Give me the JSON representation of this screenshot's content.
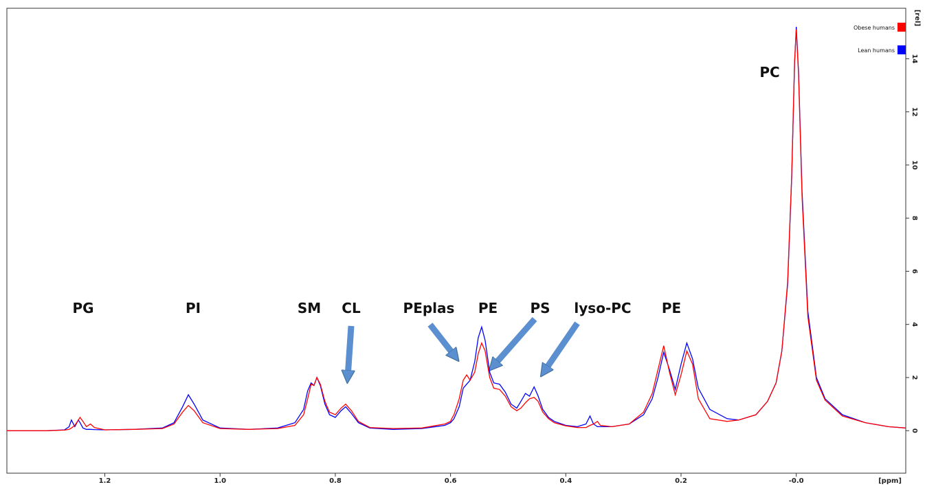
{
  "chart_data": {
    "type": "line",
    "xlabel": "[ppm]",
    "ylabel": "[rel]",
    "xlim": [
      1.37,
      -0.19
    ],
    "ylim": [
      -1.6,
      15.9
    ],
    "xticks": [
      1.2,
      {
        "value": 1,
        "label": "1.0"
      },
      0.8,
      0.6,
      0.4,
      0.2,
      {
        "value": 0,
        "label": "-0.0"
      }
    ],
    "yticks": [
      0,
      2,
      4,
      6,
      8,
      10,
      12,
      14
    ],
    "legend": "top-right",
    "annotations": [
      "PG",
      "PI",
      "SM",
      "CL",
      "PEplas",
      "PE",
      "PS",
      "lyso-PC",
      "PE",
      "PC"
    ],
    "x": [
      1.37,
      1.3,
      1.27,
      1.262,
      1.258,
      1.252,
      1.246,
      1.243,
      1.238,
      1.232,
      1.225,
      1.218,
      1.2,
      1.15,
      1.1,
      1.08,
      1.065,
      1.055,
      1.045,
      1.03,
      1.0,
      0.95,
      0.9,
      0.87,
      0.855,
      0.848,
      0.842,
      0.837,
      0.832,
      0.826,
      0.818,
      0.81,
      0.8,
      0.79,
      0.782,
      0.772,
      0.76,
      0.74,
      0.7,
      0.65,
      0.61,
      0.6,
      0.598,
      0.594,
      0.585,
      0.578,
      0.572,
      0.566,
      0.558,
      0.552,
      0.546,
      0.54,
      0.532,
      0.525,
      0.515,
      0.505,
      0.495,
      0.485,
      0.478,
      0.47,
      0.463,
      0.455,
      0.448,
      0.44,
      0.43,
      0.42,
      0.4,
      0.38,
      0.365,
      0.358,
      0.352,
      0.345,
      0.34,
      0.32,
      0.29,
      0.265,
      0.25,
      0.24,
      0.23,
      0.22,
      0.21,
      0.2,
      0.19,
      0.18,
      0.17,
      0.15,
      0.12,
      0.1,
      0.07,
      0.05,
      0.035,
      0.025,
      0.015,
      0.008,
      0.003,
      0,
      -0.004,
      -0.01,
      -0.02,
      -0.035,
      -0.05,
      -0.08,
      -0.12,
      -0.16,
      -0.19
    ],
    "series": [
      {
        "name": "Obese humans",
        "color": "#ff0000",
        "values": [
          0,
          0,
          0.02,
          0.05,
          0.1,
          0.2,
          0.4,
          0.5,
          0.35,
          0.15,
          0.25,
          0.12,
          0.03,
          0.05,
          0.08,
          0.25,
          0.7,
          0.95,
          0.75,
          0.3,
          0.08,
          0.05,
          0.08,
          0.2,
          0.6,
          1.2,
          1.75,
          1.7,
          2.0,
          1.75,
          1.1,
          0.7,
          0.6,
          0.85,
          1.0,
          0.75,
          0.35,
          0.12,
          0.08,
          0.1,
          0.25,
          0.35,
          0.45,
          0.6,
          1.2,
          1.9,
          2.1,
          1.9,
          2.2,
          2.9,
          3.3,
          3.0,
          2.0,
          1.6,
          1.55,
          1.3,
          0.9,
          0.75,
          0.85,
          1.05,
          1.2,
          1.25,
          1.1,
          0.7,
          0.45,
          0.3,
          0.18,
          0.12,
          0.12,
          0.2,
          0.25,
          0.35,
          0.2,
          0.15,
          0.25,
          0.7,
          1.4,
          2.3,
          3.2,
          2.2,
          1.35,
          2.1,
          3.0,
          2.5,
          1.2,
          0.45,
          0.35,
          0.4,
          0.6,
          1.1,
          1.8,
          3.0,
          5.6,
          9.6,
          13.9,
          15.1,
          13.4,
          8.8,
          4.3,
          1.9,
          1.15,
          0.55,
          0.3,
          0.15,
          0.1
        ]
      },
      {
        "name": "Lean humans",
        "color": "#0000ff",
        "values": [
          0,
          0,
          0.03,
          0.15,
          0.4,
          0.15,
          0.4,
          0.3,
          0.1,
          0.05,
          0.05,
          0.04,
          0.03,
          0.05,
          0.1,
          0.3,
          0.9,
          1.35,
          1.0,
          0.4,
          0.1,
          0.05,
          0.1,
          0.3,
          0.8,
          1.5,
          1.8,
          1.7,
          2.0,
          1.7,
          1.0,
          0.6,
          0.5,
          0.75,
          0.9,
          0.65,
          0.3,
          0.1,
          0.05,
          0.08,
          0.2,
          0.3,
          0.35,
          0.45,
          0.9,
          1.6,
          1.75,
          1.9,
          2.6,
          3.5,
          3.9,
          3.4,
          2.2,
          1.8,
          1.75,
          1.45,
          1.0,
          0.85,
          1.1,
          1.4,
          1.3,
          1.65,
          1.3,
          0.8,
          0.5,
          0.35,
          0.2,
          0.15,
          0.25,
          0.55,
          0.25,
          0.15,
          0.15,
          0.15,
          0.25,
          0.6,
          1.2,
          2.0,
          2.95,
          2.3,
          1.55,
          2.5,
          3.3,
          2.7,
          1.6,
          0.8,
          0.45,
          0.4,
          0.6,
          1.1,
          1.8,
          3.0,
          5.5,
          9.5,
          13.8,
          15.2,
          13.5,
          9.0,
          4.5,
          2.0,
          1.2,
          0.6,
          0.3,
          0.15,
          0.1
        ]
      }
    ]
  }
}
